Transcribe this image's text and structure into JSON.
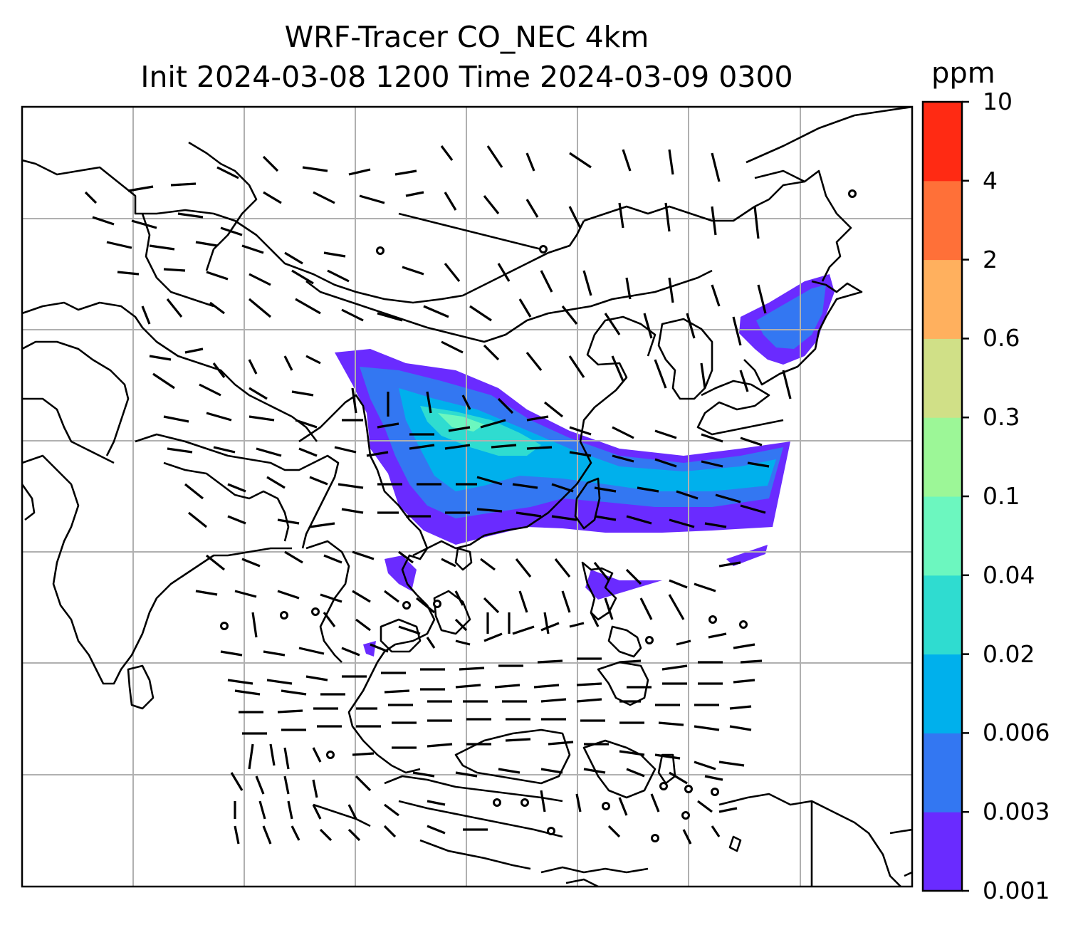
{
  "title": {
    "line1": "WRF-Tracer CO_NEC 4km",
    "line2": "Init 2024-03-08 1200 Time 2024-03-09 0300"
  },
  "colorbar": {
    "unit": "ppm",
    "ticks": [
      "0.001",
      "0.003",
      "0.006",
      "0.02",
      "0.04",
      "0.1",
      "0.3",
      "0.6",
      "2",
      "4",
      "10"
    ],
    "colors": [
      "#6a2bff",
      "#3377f2",
      "#00b0ec",
      "#2fdcd0",
      "#6cf7bf",
      "#9cf797",
      "#d0e087",
      "#ffb05e",
      "#ff7038",
      "#ff2a13"
    ]
  },
  "map": {
    "gridline_color": "#b0b0b0",
    "coastline_color": "#000000",
    "barb_color": "#000000",
    "field": "CO tracer concentration",
    "overlay": "wind barbs"
  }
}
